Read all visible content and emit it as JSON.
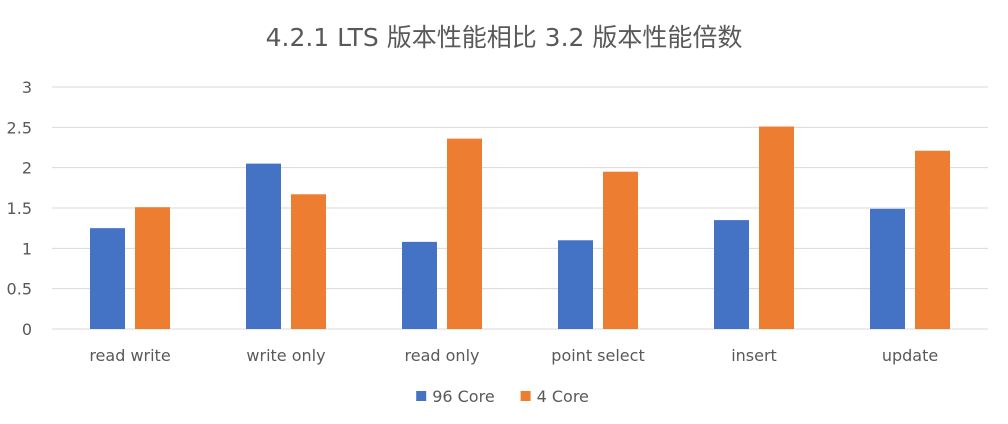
{
  "chart_data": {
    "type": "bar",
    "title": "4.2.1 LTS 版本性能相比 3.2 版本性能倍数",
    "xlabel": "",
    "ylabel": "",
    "ylim": [
      0,
      3
    ],
    "yticks": [
      "0",
      "0.5",
      "1",
      "1.5",
      "2",
      "2.5",
      "3"
    ],
    "grid": true,
    "legend_position": "bottom",
    "categories": [
      "read write",
      "write only",
      "read only",
      "point select",
      "insert",
      "update"
    ],
    "series": [
      {
        "name": "96 Core",
        "color": "#4472C4",
        "values": [
          1.25,
          2.05,
          1.08,
          1.1,
          1.35,
          1.49
        ]
      },
      {
        "name": "4 Core",
        "color": "#ED7D31",
        "values": [
          1.51,
          1.67,
          2.36,
          1.95,
          2.51,
          2.21
        ]
      }
    ]
  }
}
